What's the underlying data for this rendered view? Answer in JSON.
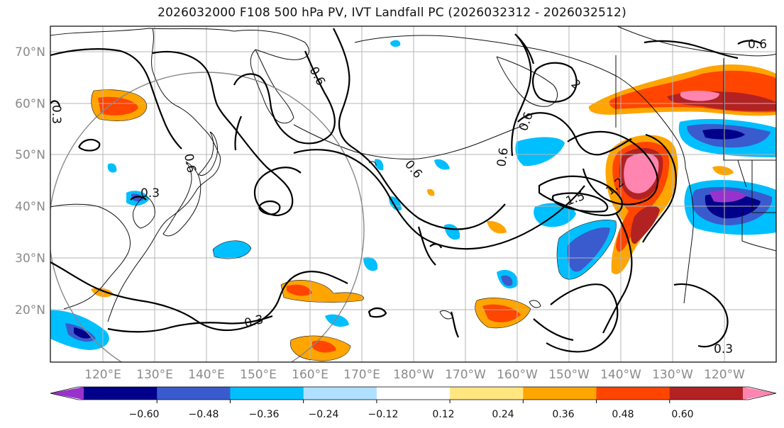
{
  "title": "2026032000 F108 500 hPa PV, IVT Landfall PC (2026032312 - 2026032512)",
  "latitude_ticks": [
    "70°N",
    "60°N",
    "50°N",
    "40°N",
    "30°N",
    "20°N"
  ],
  "longitude_ticks": [
    "120°E",
    "130°E",
    "140°E",
    "150°E",
    "160°E",
    "170°E",
    "180°W",
    "170°W",
    "160°W",
    "150°W",
    "140°W",
    "130°W",
    "120°W"
  ],
  "colorbar": {
    "ticks": [
      "−0.60",
      "−0.48",
      "−0.36",
      "−0.24",
      "−0.12",
      "0.12",
      "0.24",
      "0.36",
      "0.48",
      "0.60"
    ],
    "colors": [
      "#9932cc",
      "#00008b",
      "#3a5bcd",
      "#00bfff",
      "#b0e0ff",
      "#ffffff",
      "#ffe680",
      "#ffa500",
      "#ff4500",
      "#b22222",
      "#ff85b0"
    ]
  },
  "contour_labels": [
    "0.6",
    "0.6",
    "0.3",
    "0.6",
    "0.3",
    "0.6",
    "1.5",
    "1.2",
    "0.6",
    "0.3",
    "0.3",
    "0.6",
    "2"
  ]
}
